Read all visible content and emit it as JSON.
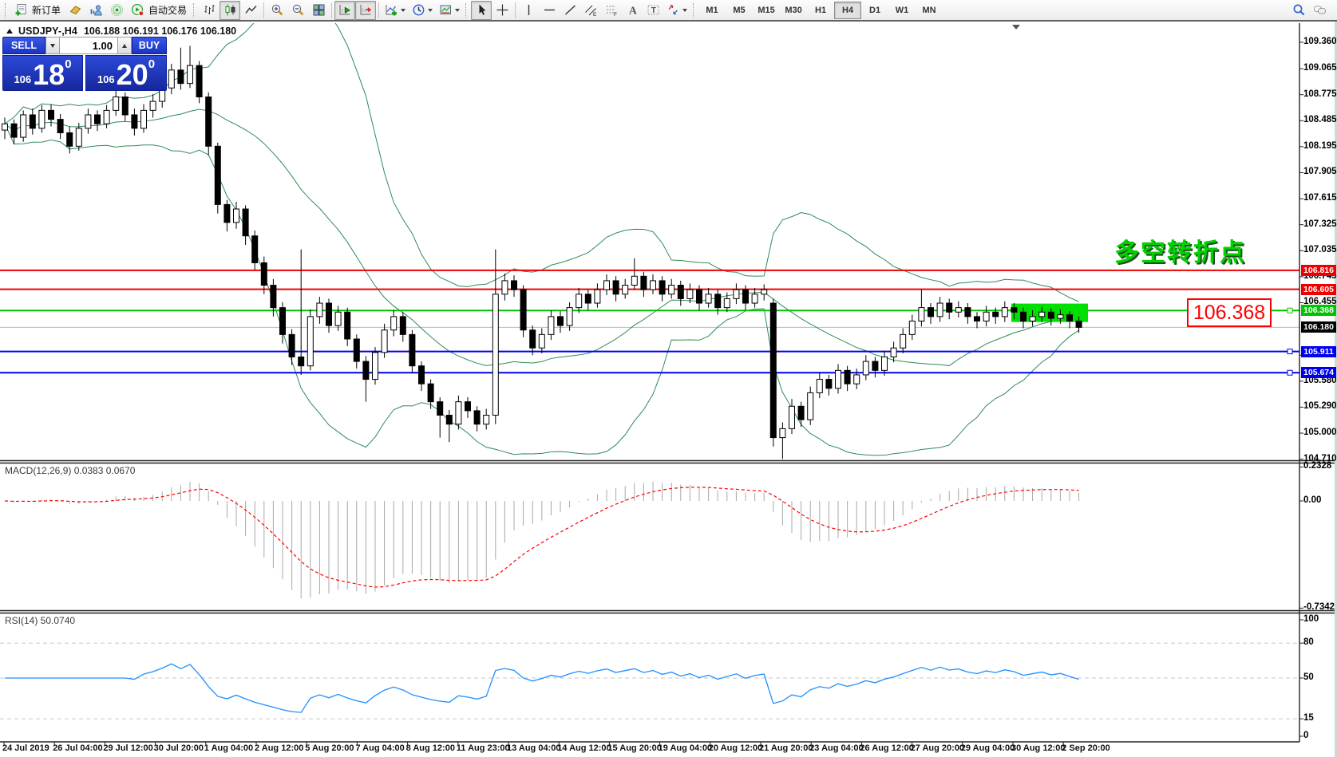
{
  "toolbar": {
    "new_order_label": "新订单",
    "autotrading_label": "自动交易",
    "groups": [
      {
        "items": [
          {
            "name": "new-order",
            "label": "新订单"
          },
          {
            "name": "metaeditor"
          },
          {
            "name": "market-watch"
          },
          {
            "name": "signals"
          },
          {
            "name": "autotrading",
            "label": "自动交易"
          }
        ]
      },
      {
        "items": [
          {
            "name": "bar-chart"
          },
          {
            "name": "candlestick-chart",
            "active": true
          },
          {
            "name": "line-chart"
          }
        ]
      },
      {
        "items": [
          {
            "name": "zoom-in"
          },
          {
            "name": "zoom-out"
          },
          {
            "name": "tile-windows"
          }
        ]
      },
      {
        "items": [
          {
            "name": "auto-scroll",
            "active": true
          },
          {
            "name": "chart-shift",
            "active": true
          }
        ]
      },
      {
        "items": [
          {
            "name": "indicators",
            "dropdown": true
          },
          {
            "name": "periods",
            "dropdown": true
          },
          {
            "name": "templates",
            "dropdown": true
          }
        ]
      },
      {
        "items": [
          {
            "name": "cursor",
            "active": true
          },
          {
            "name": "crosshair"
          }
        ]
      },
      {
        "items": [
          {
            "name": "vertical-line"
          },
          {
            "name": "horizontal-line"
          },
          {
            "name": "trendline"
          },
          {
            "name": "equidistant-channel"
          },
          {
            "name": "fibonacci"
          },
          {
            "name": "text"
          },
          {
            "name": "text-label"
          },
          {
            "name": "arrows",
            "dropdown": true
          }
        ]
      }
    ],
    "timeframes": [
      "M1",
      "M5",
      "M15",
      "M30",
      "H1",
      "H4",
      "D1",
      "W1",
      "MN"
    ],
    "active_timeframe": "H4",
    "right_icons": [
      {
        "name": "search"
      },
      {
        "name": "chat"
      }
    ]
  },
  "chart": {
    "title": "USDJPY-,H4",
    "quotes": "106.188 106.191 106.176 106.180"
  },
  "trade_panel": {
    "sell_label": "SELL",
    "buy_label": "BUY",
    "volume": "1.00",
    "sell_price": {
      "prefix": "106",
      "big": "18",
      "sup": "0"
    },
    "buy_price": {
      "prefix": "106",
      "big": "20",
      "sup": "0"
    }
  },
  "annotation": {
    "text": "多空转折点"
  },
  "callout": {
    "text": "106.368"
  },
  "price_axis": {
    "ticks": [
      "109.360",
      "109.065",
      "108.775",
      "108.485",
      "108.195",
      "107.905",
      "107.615",
      "107.325",
      "107.035",
      "106.745",
      "106.455",
      "105.870",
      "105.580",
      "105.290",
      "105.000",
      "104.710"
    ],
    "badges": [
      {
        "price": "106.816",
        "color": "#EE0000"
      },
      {
        "price": "106.605",
        "color": "#EE0000"
      },
      {
        "price": "106.368",
        "color": "#00C400"
      },
      {
        "price": "106.180",
        "color": "#000000"
      },
      {
        "price": "105.911",
        "color": "#0000EE"
      },
      {
        "price": "105.674",
        "color": "#0000EE"
      }
    ]
  },
  "hlines": [
    {
      "price": "106.816",
      "color": "#EE0000",
      "width": 2,
      "handle": false
    },
    {
      "price": "106.605",
      "color": "#EE0000",
      "width": 2,
      "handle": false
    },
    {
      "price": "106.368",
      "color": "#00C400",
      "width": 2,
      "handle": true
    },
    {
      "price": "105.911",
      "color": "#0000EE",
      "width": 2,
      "handle": true
    },
    {
      "price": "105.674",
      "color": "#0000EE",
      "width": 2,
      "handle": true
    }
  ],
  "current_price_line": {
    "price": "106.180",
    "color": "#B8B8B8"
  },
  "highlight_box": {
    "x": 1267,
    "w": 96,
    "price_top": "106.445",
    "price_bottom": "106.240",
    "color": "#00E000"
  },
  "macd_pane": {
    "label": "MACD(12,26,9) 0.0383 0.0670",
    "scale": [
      {
        "text": "0.2328",
        "value": 0.2328
      },
      {
        "text": "0.00",
        "value": 0
      },
      {
        "text": "-0.7342",
        "value": -0.7342
      }
    ]
  },
  "rsi_pane": {
    "label": "RSI(14) 50.0740",
    "scale": [
      {
        "text": "100",
        "value": 100
      },
      {
        "text": "80",
        "value": 80
      },
      {
        "text": "50",
        "value": 50
      },
      {
        "text": "15",
        "value": 15
      },
      {
        "text": "0",
        "value": 0
      }
    ],
    "levels": [
      80,
      50,
      15
    ]
  },
  "chart_data": {
    "type": "candlestick",
    "symbol": "USDJPY",
    "timeframe": "H4",
    "ylim": [
      104.69,
      109.58
    ],
    "colors": {
      "bull": "#FFFFFF",
      "bear": "#000000",
      "outline": "#000000",
      "bollinger": "#2E8B57",
      "macd_hist": "#A8A8A8",
      "macd_signal": "#FF0000",
      "rsi": "#1E90FF"
    },
    "x_labels": [
      "24 Jul 2019",
      "26 Jul 04:00",
      "29 Jul 12:00",
      "30 Jul 20:00",
      "1 Aug 04:00",
      "2 Aug 12:00",
      "5 Aug 20:00",
      "7 Aug 04:00",
      "8 Aug 12:00",
      "11 Aug 23:00",
      "13 Aug 04:00",
      "14 Aug 12:00",
      "15 Aug 20:00",
      "19 Aug 04:00",
      "20 Aug 12:00",
      "21 Aug 20:00",
      "23 Aug 04:00",
      "26 Aug 12:00",
      "27 Aug 20:00",
      "29 Aug 04:00",
      "30 Aug 12:00",
      "2 Sep 20:00"
    ],
    "candles": [
      [
        108.38,
        108.52,
        108.28,
        108.45
      ],
      [
        108.45,
        108.5,
        108.22,
        108.3
      ],
      [
        108.3,
        108.6,
        108.25,
        108.55
      ],
      [
        108.55,
        108.62,
        108.33,
        108.4
      ],
      [
        108.4,
        108.66,
        108.35,
        108.6
      ],
      [
        108.6,
        108.67,
        108.42,
        108.5
      ],
      [
        108.5,
        108.56,
        108.28,
        108.35
      ],
      [
        108.35,
        108.42,
        108.12,
        108.2
      ],
      [
        108.2,
        108.46,
        108.15,
        108.4
      ],
      [
        108.4,
        108.62,
        108.34,
        108.55
      ],
      [
        108.55,
        108.6,
        108.37,
        108.45
      ],
      [
        108.45,
        108.66,
        108.4,
        108.6
      ],
      [
        108.6,
        108.82,
        108.54,
        108.75
      ],
      [
        108.75,
        108.8,
        108.48,
        108.55
      ],
      [
        108.55,
        108.62,
        108.32,
        108.4
      ],
      [
        108.4,
        108.67,
        108.35,
        108.6
      ],
      [
        108.6,
        108.78,
        108.52,
        108.7
      ],
      [
        108.7,
        108.93,
        108.63,
        108.85
      ],
      [
        108.85,
        109.12,
        108.78,
        109.05
      ],
      [
        109.05,
        109.3,
        108.83,
        108.9
      ],
      [
        108.9,
        109.32,
        108.85,
        109.1
      ],
      [
        109.1,
        109.15,
        108.68,
        108.75
      ],
      [
        108.75,
        108.8,
        108.1,
        108.2
      ],
      [
        108.2,
        108.24,
        107.45,
        107.55
      ],
      [
        107.55,
        107.6,
        107.25,
        107.35
      ],
      [
        107.35,
        107.58,
        107.28,
        107.5
      ],
      [
        107.5,
        107.54,
        107.1,
        107.2
      ],
      [
        107.2,
        107.26,
        106.82,
        106.9
      ],
      [
        106.9,
        106.97,
        106.55,
        106.65
      ],
      [
        106.65,
        106.72,
        106.3,
        106.4
      ],
      [
        106.4,
        106.46,
        106.0,
        106.1
      ],
      [
        106.1,
        106.16,
        105.76,
        105.85
      ],
      [
        105.85,
        107.05,
        105.65,
        105.75
      ],
      [
        105.75,
        106.38,
        105.7,
        106.3
      ],
      [
        106.3,
        106.52,
        106.22,
        106.45
      ],
      [
        106.45,
        106.5,
        106.12,
        106.2
      ],
      [
        106.2,
        106.42,
        106.14,
        106.35
      ],
      [
        106.35,
        106.4,
        105.97,
        106.05
      ],
      [
        106.05,
        106.1,
        105.72,
        105.8
      ],
      [
        105.8,
        105.86,
        105.35,
        105.6
      ],
      [
        105.6,
        105.96,
        105.54,
        105.9
      ],
      [
        105.9,
        106.22,
        105.84,
        106.15
      ],
      [
        106.15,
        106.37,
        106.08,
        106.3
      ],
      [
        106.3,
        106.35,
        106.02,
        106.1
      ],
      [
        106.1,
        106.15,
        105.67,
        105.75
      ],
      [
        105.75,
        105.8,
        105.47,
        105.55
      ],
      [
        105.55,
        105.6,
        105.27,
        105.35
      ],
      [
        105.35,
        105.4,
        104.95,
        105.2
      ],
      [
        105.2,
        105.26,
        104.9,
        105.1
      ],
      [
        105.1,
        105.42,
        105.04,
        105.35
      ],
      [
        105.35,
        105.4,
        105.17,
        105.25
      ],
      [
        105.25,
        105.3,
        105.02,
        105.1
      ],
      [
        105.1,
        105.27,
        105.04,
        105.2
      ],
      [
        105.2,
        107.05,
        105.1,
        106.55
      ],
      [
        106.55,
        106.78,
        106.48,
        106.7
      ],
      [
        106.7,
        106.76,
        106.52,
        106.6
      ],
      [
        106.6,
        106.65,
        106.07,
        106.15
      ],
      [
        106.15,
        106.2,
        105.87,
        105.95
      ],
      [
        105.95,
        106.17,
        105.89,
        106.1
      ],
      [
        106.1,
        106.37,
        106.04,
        106.3
      ],
      [
        106.3,
        106.36,
        106.12,
        106.2
      ],
      [
        106.2,
        106.46,
        106.14,
        106.4
      ],
      [
        106.4,
        106.62,
        106.34,
        106.55
      ],
      [
        106.55,
        106.6,
        106.37,
        106.45
      ],
      [
        106.45,
        106.67,
        106.4,
        106.6
      ],
      [
        106.6,
        106.77,
        106.54,
        106.7
      ],
      [
        106.7,
        106.75,
        106.47,
        106.55
      ],
      [
        106.55,
        106.72,
        106.5,
        106.65
      ],
      [
        106.65,
        106.95,
        106.6,
        106.75
      ],
      [
        106.75,
        106.8,
        106.52,
        106.6
      ],
      [
        106.6,
        106.77,
        106.55,
        106.7
      ],
      [
        106.7,
        106.75,
        106.47,
        106.55
      ],
      [
        106.55,
        106.72,
        106.5,
        106.65
      ],
      [
        106.65,
        106.7,
        106.42,
        106.5
      ],
      [
        106.5,
        106.67,
        106.45,
        106.6
      ],
      [
        106.6,
        106.65,
        106.37,
        106.45
      ],
      [
        106.45,
        106.62,
        106.4,
        106.55
      ],
      [
        106.55,
        106.6,
        106.32,
        106.4
      ],
      [
        106.4,
        106.57,
        106.35,
        106.5
      ],
      [
        106.5,
        106.67,
        106.44,
        106.6
      ],
      [
        106.6,
        106.65,
        106.37,
        106.45
      ],
      [
        106.45,
        106.62,
        106.4,
        106.55
      ],
      [
        106.55,
        106.66,
        106.48,
        106.6
      ],
      [
        106.45,
        106.5,
        104.85,
        104.95
      ],
      [
        104.95,
        105.12,
        104.71,
        105.05
      ],
      [
        105.05,
        105.38,
        104.99,
        105.3
      ],
      [
        105.3,
        105.35,
        105.07,
        105.15
      ],
      [
        105.15,
        105.52,
        105.09,
        105.45
      ],
      [
        105.45,
        105.68,
        105.39,
        105.6
      ],
      [
        105.6,
        105.65,
        105.42,
        105.5
      ],
      [
        105.5,
        105.77,
        105.44,
        105.7
      ],
      [
        105.7,
        105.75,
        105.47,
        105.55
      ],
      [
        105.55,
        105.72,
        105.49,
        105.65
      ],
      [
        105.65,
        105.87,
        105.59,
        105.8
      ],
      [
        105.8,
        105.85,
        105.62,
        105.7
      ],
      [
        105.7,
        105.92,
        105.64,
        105.85
      ],
      [
        105.85,
        106.02,
        105.79,
        105.95
      ],
      [
        105.95,
        106.17,
        105.89,
        106.1
      ],
      [
        106.1,
        106.32,
        106.04,
        106.25
      ],
      [
        106.25,
        106.6,
        106.19,
        106.4
      ],
      [
        106.4,
        106.45,
        106.22,
        106.3
      ],
      [
        106.3,
        106.52,
        106.24,
        106.45
      ],
      [
        106.45,
        106.5,
        106.27,
        106.35
      ],
      [
        106.35,
        106.47,
        106.29,
        106.4
      ],
      [
        106.4,
        106.45,
        106.22,
        106.3
      ],
      [
        106.3,
        106.35,
        106.17,
        106.25
      ],
      [
        106.25,
        106.42,
        106.19,
        106.35
      ],
      [
        106.35,
        106.4,
        106.22,
        106.3
      ],
      [
        106.3,
        106.47,
        106.24,
        106.4
      ],
      [
        106.4,
        106.45,
        106.27,
        106.35
      ],
      [
        106.35,
        106.4,
        106.17,
        106.25
      ],
      [
        106.25,
        106.37,
        106.19,
        106.3
      ],
      [
        106.3,
        106.41,
        106.24,
        106.35
      ],
      [
        106.35,
        106.39,
        106.2,
        106.28
      ],
      [
        106.28,
        106.38,
        106.22,
        106.32
      ],
      [
        106.32,
        106.36,
        106.17,
        106.25
      ],
      [
        106.25,
        106.3,
        106.12,
        106.18
      ]
    ],
    "indicators": [
      {
        "name": "Bollinger Bands",
        "period": 20,
        "deviation": 2
      },
      {
        "name": "MACD",
        "fast": 12,
        "slow": 26,
        "signal": 9,
        "values": [
          0.0383,
          0.067
        ]
      },
      {
        "name": "RSI",
        "period": 14,
        "value": 50.074
      }
    ]
  }
}
